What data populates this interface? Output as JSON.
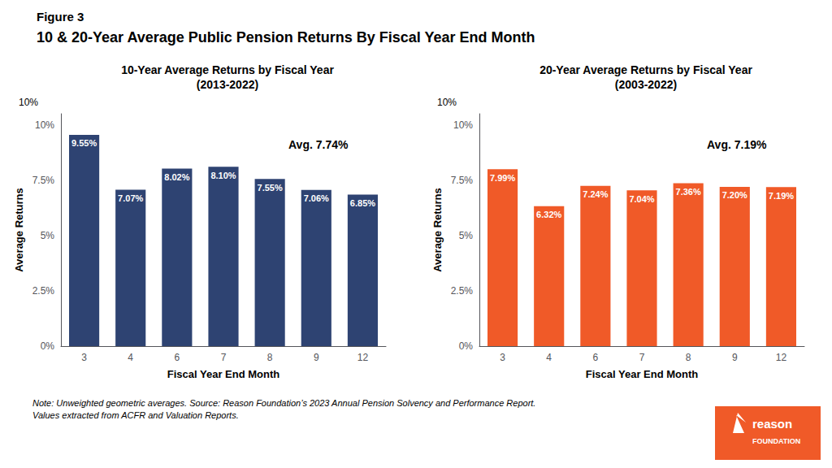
{
  "figure_label": "Figure 3",
  "title": "10 & 20-Year Average Public Pension Returns By Fiscal Year End Month",
  "note": "Note: Unweighted geometric averages. Source: Reason Foundation’s 2023 Annual Pension Solvency and Performance Report.\nValues extracted from ACFR and Valuation Reports.",
  "logo": [
    "reason",
    "FOUNDATION"
  ],
  "chart_data": [
    {
      "type": "bar",
      "title": "10-Year Average Returns by Fiscal Year\n(2013-2022)",
      "categories": [
        "3",
        "4",
        "6",
        "7",
        "8",
        "9",
        "12"
      ],
      "values": [
        9.55,
        7.07,
        8.02,
        8.1,
        7.55,
        7.06,
        6.85
      ],
      "value_labels": [
        "9.55%",
        "7.07%",
        "8.02%",
        "8.10%",
        "7.55%",
        "7.06%",
        "6.85%"
      ],
      "data_labels": true,
      "color": "#2E4372",
      "xlabel": "Fiscal Year End Month",
      "ylabel": "Average Returns",
      "ylim": [
        0,
        10.5
      ],
      "yticks": [
        {
          "value": 0,
          "label": "0%"
        },
        {
          "value": 2.5,
          "label": "2.5%"
        },
        {
          "value": 5.0,
          "label": "5%"
        },
        {
          "value": 7.5,
          "label": "7.5%"
        },
        {
          "value": 10.0,
          "label": "10%"
        }
      ],
      "grid": false,
      "annotations": [
        "Avg. 7.74%",
        "10%"
      ]
    },
    {
      "type": "bar",
      "title": "20-Year Average Returns by Fiscal Year\n(2003-2022)",
      "categories": [
        "3",
        "4",
        "6",
        "7",
        "8",
        "9",
        "12"
      ],
      "values": [
        7.99,
        6.32,
        7.24,
        7.04,
        7.36,
        7.2,
        7.19
      ],
      "value_labels": [
        "7.99%",
        "6.32%",
        "7.24%",
        "7.04%",
        "7.36%",
        "7.20%",
        "7.19%"
      ],
      "data_labels": true,
      "color": "#F05A28",
      "xlabel": "Fiscal Year End Month",
      "ylabel": "Average Returns",
      "ylim": [
        0,
        10.5
      ],
      "yticks": [
        {
          "value": 0,
          "label": "0%"
        },
        {
          "value": 2.5,
          "label": "2.5%"
        },
        {
          "value": 5.0,
          "label": "5%"
        },
        {
          "value": 7.5,
          "label": "7.5%"
        },
        {
          "value": 10.0,
          "label": "10%"
        }
      ],
      "grid": false,
      "annotations": [
        "Avg. 7.19%",
        "10%"
      ]
    }
  ]
}
